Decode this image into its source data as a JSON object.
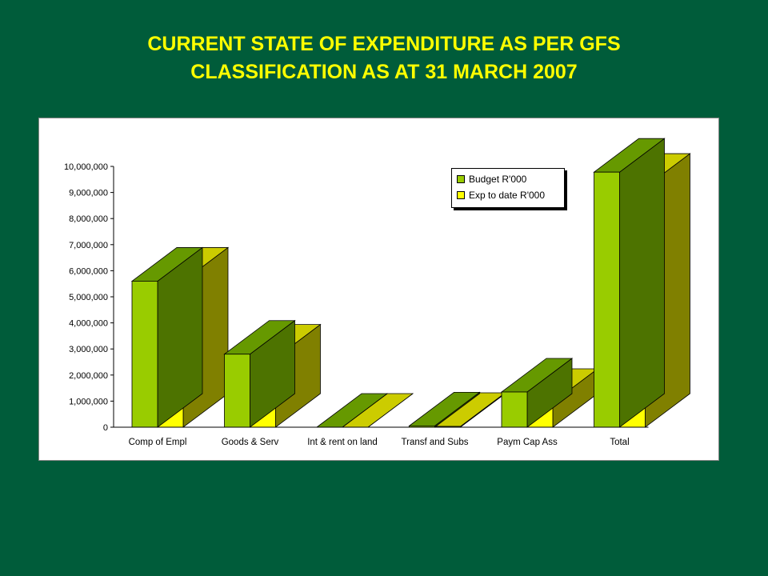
{
  "title": {
    "line1": "CURRENT STATE OF EXPENDITURE AS PER GFS",
    "line2": "CLASSIFICATION AS AT 31 MARCH 2007"
  },
  "chart_data": {
    "type": "bar",
    "three_d": true,
    "categories": [
      "Comp of Empl",
      "Goods & Serv",
      "Int & rent on land",
      "Transf and Subs",
      "Paym Cap Ass",
      "Total"
    ],
    "series": [
      {
        "name": "Budget R'000",
        "color": "#99CC00",
        "values": [
          5600000,
          2800000,
          0,
          50000,
          1350000,
          9780000
        ]
      },
      {
        "name": "Exp to date R'000",
        "color": "#FFFF00",
        "values": [
          5600000,
          2650000,
          0,
          30000,
          950000,
          9200000
        ]
      }
    ],
    "ylim": [
      0,
      10000000
    ],
    "yticks": [
      "0",
      "1,000,000",
      "2,000,000",
      "3,000,000",
      "4,000,000",
      "5,000,000",
      "6,000,000",
      "7,000,000",
      "8,000,000",
      "9,000,000",
      "10,000,000"
    ],
    "legend_position": "top-right",
    "grid": false,
    "xlabel": "",
    "ylabel": ""
  },
  "colors": {
    "background": "#005C3A",
    "title": "#FFFF00",
    "budget_top": "#669900",
    "budget_side": "#4D7300",
    "exp_top": "#CCCC00",
    "exp_side": "#808000"
  }
}
